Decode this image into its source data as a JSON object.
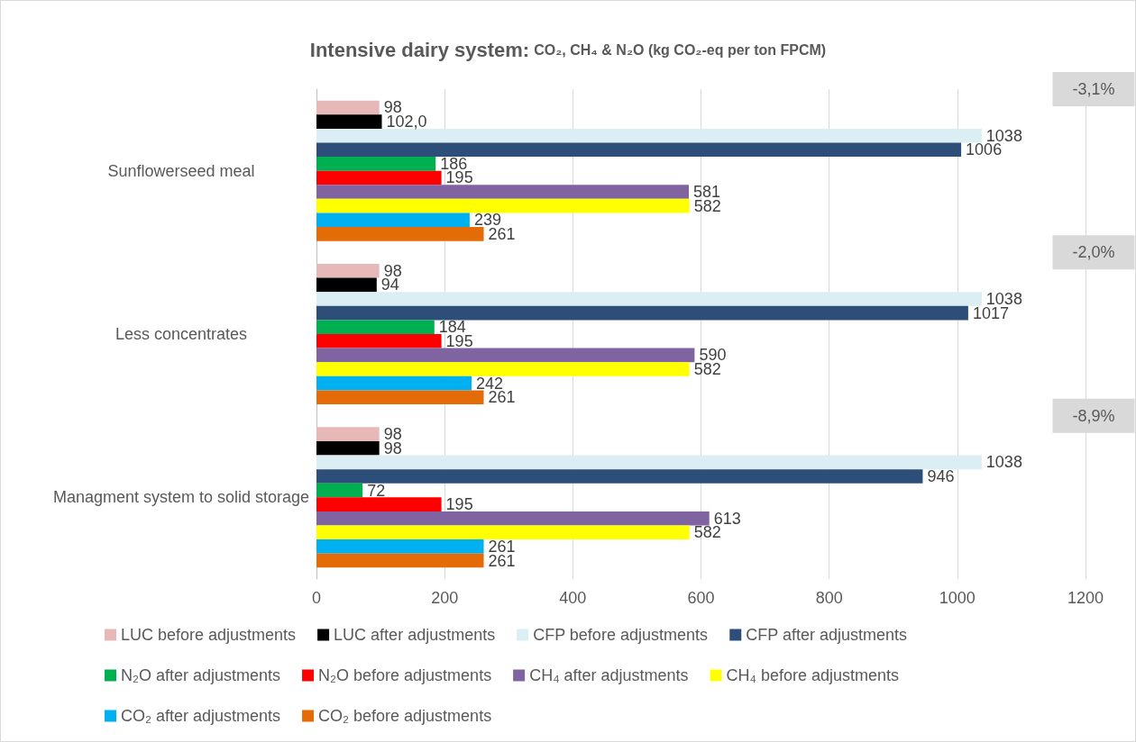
{
  "chart_data": {
    "type": "bar",
    "orientation": "horizontal",
    "title": "Intensive dairy system:",
    "subtitle": "CO₂, CH₄ & N₂O (kg CO₂-eq per ton FPCM)",
    "categories": [
      "Sunflowerseed meal",
      "Less concentrates",
      "Managment system to solid storage"
    ],
    "series": [
      {
        "name": "LUC before adjustments",
        "color": "#e6b8b7",
        "values": [
          98,
          98,
          98
        ]
      },
      {
        "name": "LUC after adjustments",
        "color": "#000000",
        "values": [
          102.0,
          94,
          98
        ],
        "value_labels": [
          "102,0",
          "94",
          "98"
        ]
      },
      {
        "name": "CFP before adjustments",
        "color": "#dbeef4",
        "values": [
          1038,
          1038,
          1038
        ]
      },
      {
        "name": "CFP after adjustments",
        "color": "#2e4e7a",
        "values": [
          1006,
          1017,
          946
        ]
      },
      {
        "name": "N₂O after adjustments",
        "color": "#00b050",
        "values": [
          186,
          184,
          72
        ]
      },
      {
        "name": "N₂O before adjustments",
        "color": "#ff0000",
        "values": [
          195,
          195,
          195
        ]
      },
      {
        "name": "CH₄ after adjustments",
        "color": "#8064a2",
        "values": [
          581,
          590,
          613
        ]
      },
      {
        "name": "CH₄ before adjustments",
        "color": "#ffff00",
        "values": [
          582,
          582,
          582
        ]
      },
      {
        "name": "CO₂ after adjustments",
        "color": "#00b0f0",
        "values": [
          239,
          242,
          261
        ]
      },
      {
        "name": "CO₂ before adjustments",
        "color": "#e36c09",
        "values": [
          261,
          261,
          261
        ]
      }
    ],
    "xlim": [
      0,
      1200
    ],
    "xticks": [
      0,
      200,
      400,
      600,
      800,
      1000,
      1200
    ],
    "annotations": [
      "-3,1%",
      "-2,0%",
      "-8,9%"
    ],
    "data_labels": true,
    "grid": "x",
    "legend": "bottom"
  }
}
